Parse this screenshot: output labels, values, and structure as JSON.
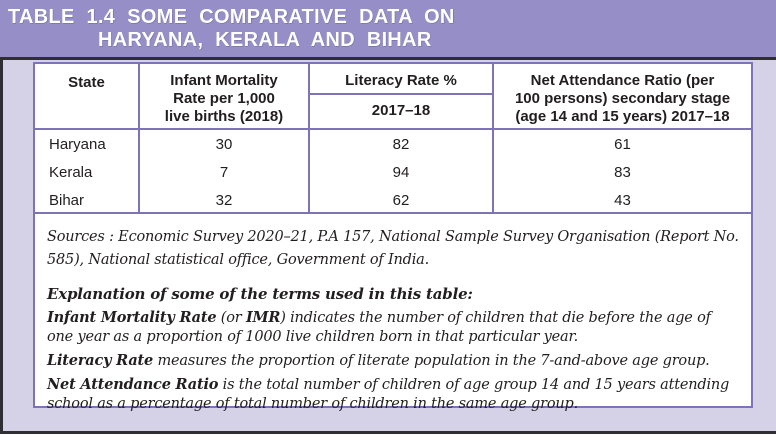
{
  "title": {
    "part1": "TABLE 1.4",
    "part2": "SOME COMPARATIVE DATA ON",
    "line2": "HARYANA, KERALA  AND BIHAR"
  },
  "table": {
    "header": {
      "state": "State",
      "imr_lines": [
        "Infant Mortality",
        "Rate per 1,000",
        "live births (2018)"
      ],
      "literacy": "Literacy Rate %",
      "literacy_period": "2017–18",
      "nar_lines": [
        "Net Attendance Ratio (per",
        "100 persons) secondary stage",
        "(age 14 and 15 years) 2017–18"
      ]
    },
    "rows": [
      {
        "state": "Haryana",
        "imr": "30",
        "literacy": "82",
        "nar": "61"
      },
      {
        "state": "Kerala",
        "imr": "7",
        "literacy": "94",
        "nar": "83"
      },
      {
        "state": "Bihar",
        "imr": "32",
        "literacy": "62",
        "nar": "43"
      }
    ]
  },
  "notes": {
    "sources": "Sources : Economic Survey 2020–21, P.A 157, National Sample Survey Organisation (Report No. 585), National statistical office, Government of India.",
    "explanation_heading": "Explanation of some of the terms used in this table:",
    "imr_term": "Infant Mortality Rate",
    "imr_mid": " (or ",
    "imr_abbr": "IMR",
    "imr_rest": ") indicates the number of children that die before the age of one year as a proportion of 1000 live children born in that particular year.",
    "literacy_term": "Literacy Rate",
    "literacy_rest": " measures the proportion of literate population in the 7-and-above age group.",
    "nar_term": "Net Attendance Ratio",
    "nar_rest": " is the total number of children of age group 14 and 15 years attending school as a percentage of total number of children in the same age group."
  },
  "colors": {
    "band_purple": "#968ec6",
    "lavender": "#d5d2e7",
    "border_purple": "#7c74b6",
    "frame_dark": "#2f2f33",
    "text": "#221e1f",
    "title_text": "#ffffff"
  }
}
